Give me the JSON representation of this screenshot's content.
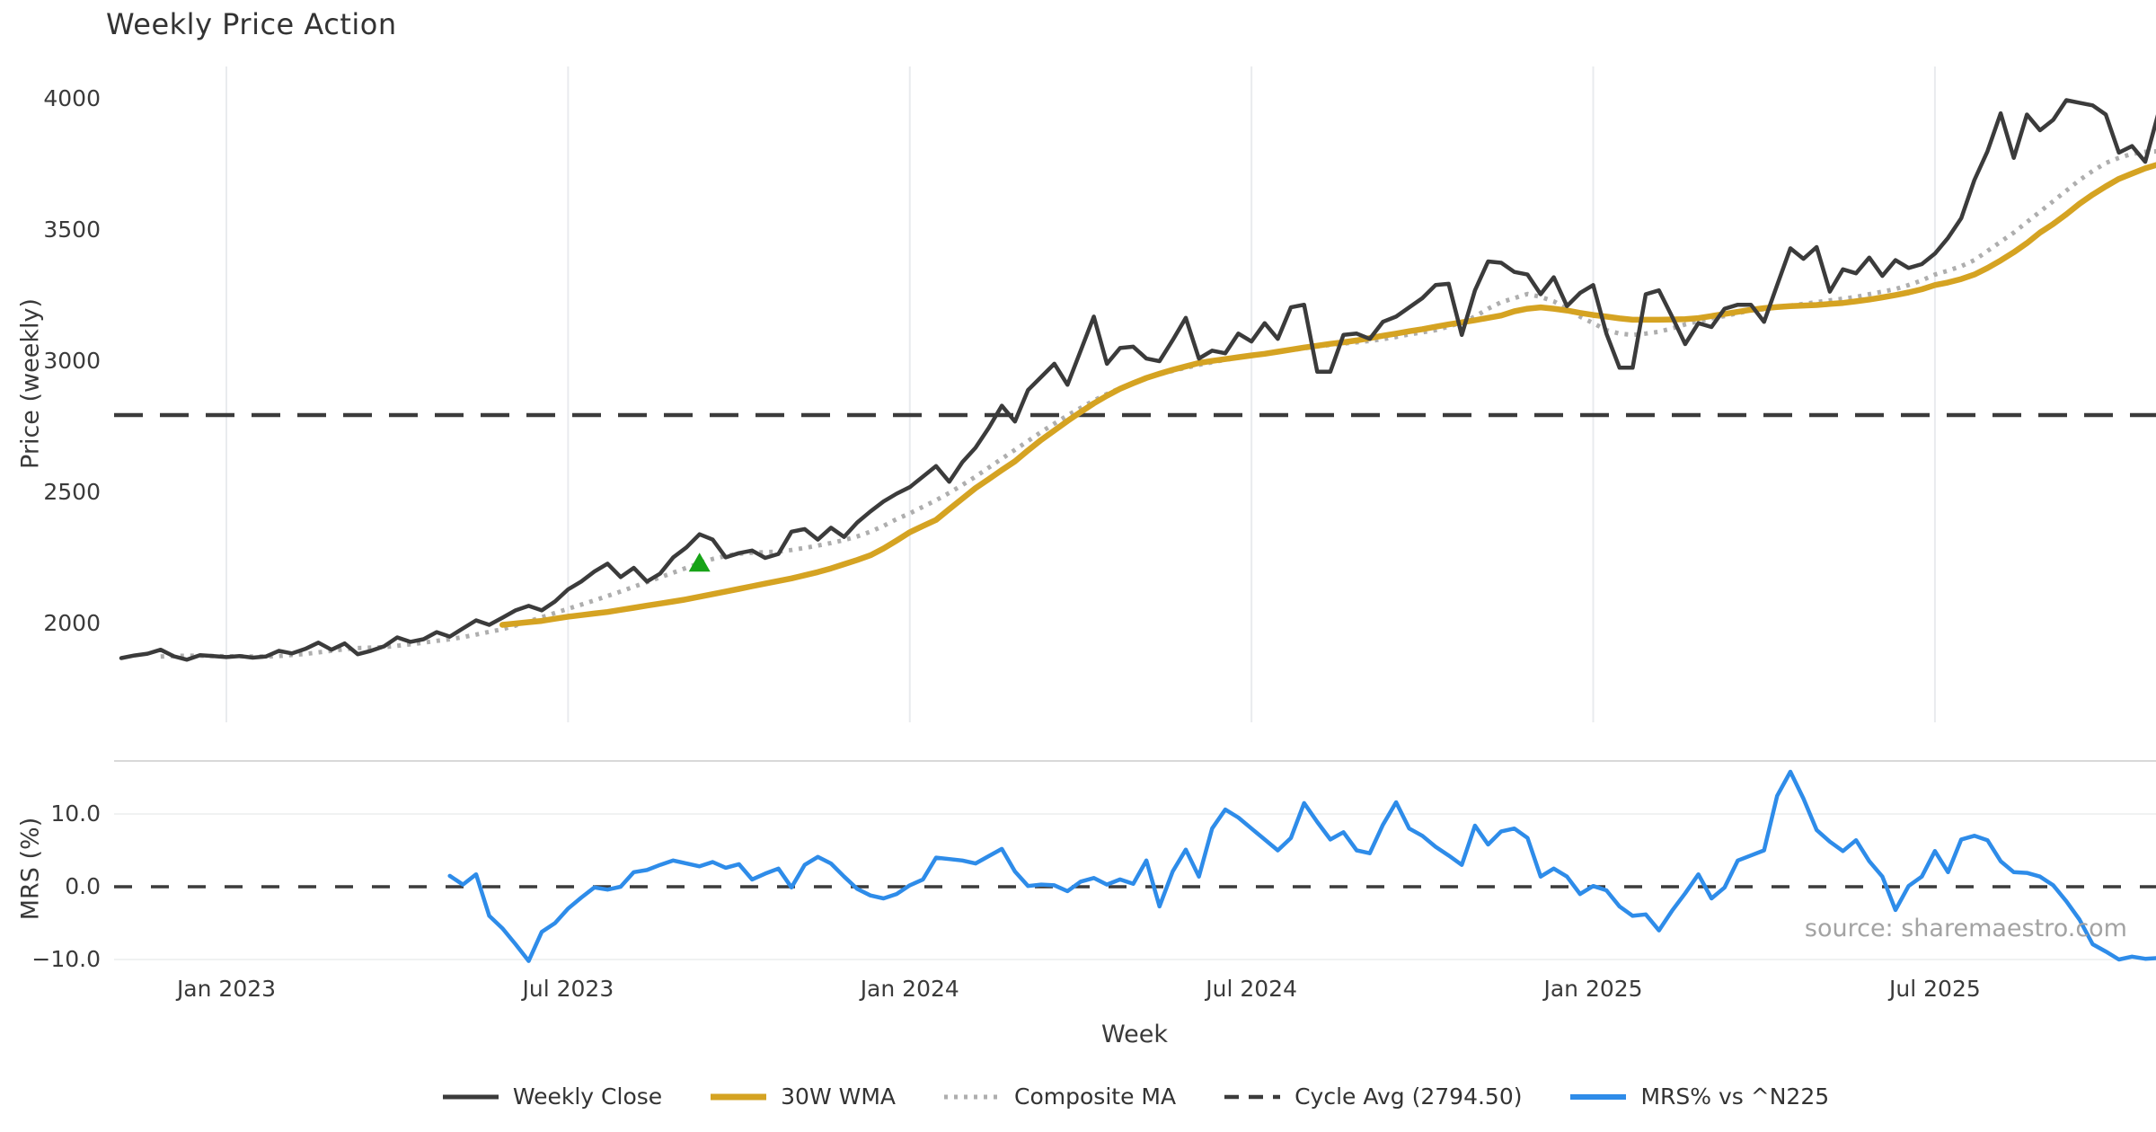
{
  "title": "Weekly Price Action",
  "watermark": "source: sharemaestro.com",
  "axes": {
    "x_label": "Week",
    "price_label": "Price (weekly)",
    "mrs_label": "MRS (%)"
  },
  "colors": {
    "close": "#3b3b3b",
    "wma": "#d5a322",
    "composite": "#aeaeae",
    "cycle_avg": "#3b3b3b",
    "mrs": "#2e8ce9",
    "marker": "#17a317",
    "grid": "#e9ebee",
    "panel_border": "#d9d9d9",
    "mrs_minor_grid": "#f0f2f2",
    "text": "#3a3a3a",
    "watermark_color": "#a3a3a3"
  },
  "legend": [
    {
      "label": "Weekly Close",
      "color": "#3b3b3b",
      "style": "solid",
      "width": 5
    },
    {
      "label": "30W WMA",
      "color": "#d5a322",
      "style": "solid",
      "width": 7
    },
    {
      "label": "Composite MA",
      "color": "#aeaeae",
      "style": "dotted",
      "width": 5
    },
    {
      "label": "Cycle Avg (2794.50)",
      "color": "#3b3b3b",
      "style": "dashed",
      "width": 4.5
    },
    {
      "label": "MRS% vs ^N225",
      "color": "#2e8ce9",
      "style": "solid",
      "width": 6
    }
  ],
  "chart_data": {
    "type": "line",
    "title": "Weekly Price Action",
    "xlabel": "Week",
    "frequency": "weekly",
    "start_week_date": "2022-11-07",
    "legend_position": "bottom-center",
    "x_ticks": [
      {
        "week": 8,
        "label": "Jan 2023"
      },
      {
        "week": 34,
        "label": "Jul 2023"
      },
      {
        "week": 60,
        "label": "Jan 2024"
      },
      {
        "week": 86,
        "label": "Jul 2024"
      },
      {
        "week": 112,
        "label": "Jan 2025"
      },
      {
        "week": 138,
        "label": "Jul 2025"
      }
    ],
    "price_panel": {
      "ylabel": "Price (weekly)",
      "ylim": [
        1760,
        4125
      ],
      "yticks": [
        2000,
        2500,
        3000,
        3500,
        4000
      ],
      "ytick_labels": [
        "2000",
        "2500",
        "3000",
        "3500",
        "4000"
      ],
      "grid": "vertical-only",
      "cycle_avg": 2794.5,
      "signal_marker": {
        "shape": "triangle-up",
        "week": 44,
        "value": 2232
      },
      "series": [
        {
          "name": "Weekly Close",
          "key": "close",
          "style": "solid",
          "start_week": 0,
          "values": [
            1868,
            1878,
            1885,
            1900,
            1875,
            1862,
            1879,
            1876,
            1872,
            1876,
            1870,
            1874,
            1896,
            1886,
            1903,
            1927,
            1900,
            1924,
            1883,
            1896,
            1913,
            1947,
            1930,
            1940,
            1967,
            1950,
            1981,
            2012,
            1995,
            2022,
            2050,
            2067,
            2050,
            2084,
            2130,
            2160,
            2198,
            2228,
            2177,
            2212,
            2160,
            2190,
            2252,
            2290,
            2340,
            2320,
            2252,
            2268,
            2278,
            2250,
            2265,
            2350,
            2360,
            2320,
            2365,
            2330,
            2385,
            2427,
            2465,
            2495,
            2520,
            2560,
            2600,
            2540,
            2615,
            2670,
            2745,
            2830,
            2770,
            2890,
            2940,
            2990,
            2910,
            3040,
            3170,
            2990,
            3050,
            3055,
            3010,
            3000,
            3080,
            3165,
            3010,
            3040,
            3030,
            3105,
            3075,
            3145,
            3085,
            3205,
            3215,
            2960,
            2960,
            3100,
            3105,
            3085,
            3150,
            3170,
            3205,
            3240,
            3290,
            3295,
            3100,
            3270,
            3380,
            3375,
            3340,
            3330,
            3255,
            3320,
            3210,
            3260,
            3290,
            3105,
            2975,
            2975,
            3255,
            3270,
            3170,
            3065,
            3145,
            3130,
            3200,
            3215,
            3215,
            3150,
            3290,
            3430,
            3390,
            3435,
            3265,
            3350,
            3335,
            3395,
            3325,
            3385,
            3355,
            3370,
            3410,
            3470,
            3545,
            3690,
            3800,
            3945,
            3775,
            3940,
            3880,
            3920,
            3995,
            3985,
            3975,
            3940,
            3795,
            3820,
            3760,
            3945
          ]
        },
        {
          "name": "30W WMA",
          "key": "wma",
          "style": "solid",
          "start_week": 29,
          "values": [
            1995,
            2000,
            2005,
            2010,
            2018,
            2026,
            2032,
            2038,
            2044,
            2052,
            2060,
            2068,
            2076,
            2084,
            2092,
            2102,
            2112,
            2122,
            2132,
            2142,
            2152,
            2162,
            2172,
            2184,
            2196,
            2210,
            2226,
            2242,
            2260,
            2286,
            2316,
            2348,
            2372,
            2395,
            2436,
            2476,
            2516,
            2550,
            2585,
            2618,
            2660,
            2700,
            2736,
            2772,
            2806,
            2839,
            2868,
            2895,
            2916,
            2936,
            2952,
            2967,
            2980,
            2993,
            3001,
            3008,
            3015,
            3022,
            3028,
            3036,
            3044,
            3052,
            3059,
            3066,
            3072,
            3079,
            3088,
            3097,
            3105,
            3114,
            3122,
            3131,
            3140,
            3148,
            3156,
            3165,
            3174,
            3190,
            3200,
            3205,
            3200,
            3193,
            3184,
            3176,
            3170,
            3163,
            3158,
            3158,
            3158,
            3159,
            3160,
            3164,
            3172,
            3180,
            3188,
            3196,
            3202,
            3206,
            3210,
            3212,
            3214,
            3218,
            3222,
            3228,
            3235,
            3243,
            3252,
            3262,
            3274,
            3290,
            3300,
            3313,
            3330,
            3355,
            3384,
            3415,
            3450,
            3490,
            3523,
            3560,
            3600,
            3635,
            3666,
            3695,
            3715,
            3735,
            3750
          ]
        },
        {
          "name": "Composite MA",
          "key": "composite",
          "style": "dotted",
          "start_week": 3,
          "values": [
            1874,
            1876,
            1877,
            1877,
            1876,
            1875,
            1875,
            1874,
            1874,
            1876,
            1880,
            1884,
            1890,
            1896,
            1902,
            1906,
            1908,
            1910,
            1915,
            1921,
            1927,
            1934,
            1940,
            1948,
            1958,
            1968,
            1978,
            1992,
            2008,
            2024,
            2040,
            2056,
            2072,
            2088,
            2105,
            2122,
            2140,
            2158,
            2176,
            2194,
            2212,
            2230,
            2246,
            2258,
            2266,
            2270,
            2272,
            2274,
            2280,
            2288,
            2297,
            2307,
            2318,
            2332,
            2350,
            2372,
            2398,
            2420,
            2445,
            2470,
            2498,
            2528,
            2560,
            2594,
            2628,
            2662,
            2696,
            2730,
            2762,
            2793,
            2822,
            2850,
            2875,
            2897,
            2917,
            2935,
            2950,
            2963,
            2975,
            2986,
            2996,
            3005,
            3013,
            3021,
            3028,
            3035,
            3042,
            3049,
            3056,
            3062,
            3067,
            3072,
            3077,
            3084,
            3092,
            3102,
            3110,
            3118,
            3132,
            3148,
            3170,
            3200,
            3225,
            3240,
            3256,
            3245,
            3228,
            3200,
            3170,
            3145,
            3118,
            3105,
            3100,
            3105,
            3112,
            3125,
            3140,
            3152,
            3163,
            3172,
            3183,
            3193,
            3198,
            3205,
            3212,
            3218,
            3225,
            3232,
            3238,
            3245,
            3255,
            3265,
            3275,
            3290,
            3308,
            3330,
            3345,
            3362,
            3385,
            3420,
            3455,
            3490,
            3530,
            3570,
            3610,
            3650,
            3690,
            3725,
            3755,
            3775,
            3790,
            3798,
            3800
          ]
        }
      ]
    },
    "mrs_panel": {
      "ylabel": "MRS (%)",
      "ylim": [
        -13.0,
        17.3
      ],
      "yticks": [
        10.0,
        0.0,
        -10.0
      ],
      "ytick_labels": [
        "10.0",
        "0.0",
        "−10.0"
      ],
      "zero_line_dashed": true,
      "series": [
        {
          "name": "MRS% vs ^N225",
          "key": "mrs",
          "style": "solid",
          "start_week": 25,
          "values": [
            1.5,
            0.3,
            1.7,
            -4.0,
            -5.7,
            -7.9,
            -10.2,
            -6.2,
            -5.0,
            -3.0,
            -1.5,
            -0.1,
            -0.4,
            0.0,
            2.0,
            2.3,
            3.0,
            3.6,
            3.2,
            2.8,
            3.4,
            2.6,
            3.1,
            1.0,
            1.8,
            2.5,
            -0.1,
            3.0,
            4.1,
            3.2,
            1.4,
            -0.3,
            -1.2,
            -1.6,
            -1.0,
            0.2,
            1.0,
            4.0,
            3.8,
            3.6,
            3.2,
            4.2,
            5.2,
            2.1,
            0.1,
            0.3,
            0.2,
            -0.6,
            0.7,
            1.2,
            0.3,
            1.0,
            0.4,
            3.6,
            -2.7,
            2.1,
            5.1,
            1.4,
            8.0,
            10.6,
            9.5,
            8.0,
            6.5,
            5.0,
            6.7,
            11.5,
            8.9,
            6.5,
            7.5,
            5.0,
            4.6,
            8.5,
            11.6,
            8.0,
            7.0,
            5.5,
            4.3,
            3.0,
            8.4,
            5.8,
            7.6,
            8.0,
            6.7,
            1.4,
            2.5,
            1.4,
            -1.0,
            0.1,
            -0.5,
            -2.7,
            -4.0,
            -3.8,
            -6.0,
            -3.3,
            -0.9,
            1.7,
            -1.6,
            -0.1,
            3.6,
            4.3,
            5.0,
            12.5,
            15.8,
            12.1,
            7.8,
            6.2,
            4.9,
            6.4,
            3.5,
            1.4,
            -3.2,
            0.1,
            1.4,
            4.9,
            2.0,
            6.5,
            7.0,
            6.4,
            3.5,
            2.0,
            1.9,
            1.4,
            0.2,
            -2.0,
            -4.5,
            -7.9,
            -8.9,
            -10.0,
            -9.6,
            -9.9,
            -9.8
          ]
        }
      ]
    }
  }
}
